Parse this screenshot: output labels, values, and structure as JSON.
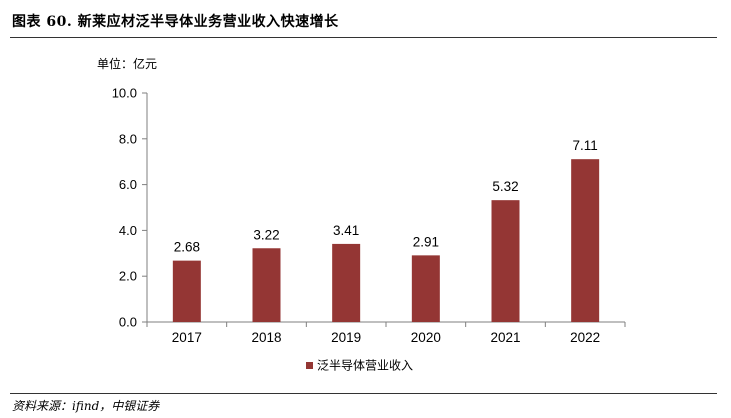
{
  "header": {
    "title": "图表 60. 新莱应材泛半导体业务营业收入快速增长"
  },
  "footer": {
    "source": "资料来源：ifind，中银证券"
  },
  "chart_data": {
    "type": "bar",
    "unit_label": "单位：亿元",
    "categories": [
      "2017",
      "2018",
      "2019",
      "2020",
      "2021",
      "2022"
    ],
    "series": [
      {
        "name": "泛半导体营业收入",
        "values": [
          2.68,
          3.22,
          3.41,
          2.91,
          5.32,
          7.11
        ],
        "labels": [
          "2.68",
          "3.22",
          "3.41",
          "2.91",
          "5.32",
          "7.11"
        ],
        "color": "#943634"
      }
    ],
    "ylim": [
      0,
      10
    ],
    "yticks": [
      "0.0",
      "2.0",
      "4.0",
      "6.0",
      "8.0",
      "10.0"
    ],
    "ytick_values": [
      0,
      2,
      4,
      6,
      8,
      10
    ],
    "grid": false,
    "legend_position": "bottom-center"
  }
}
